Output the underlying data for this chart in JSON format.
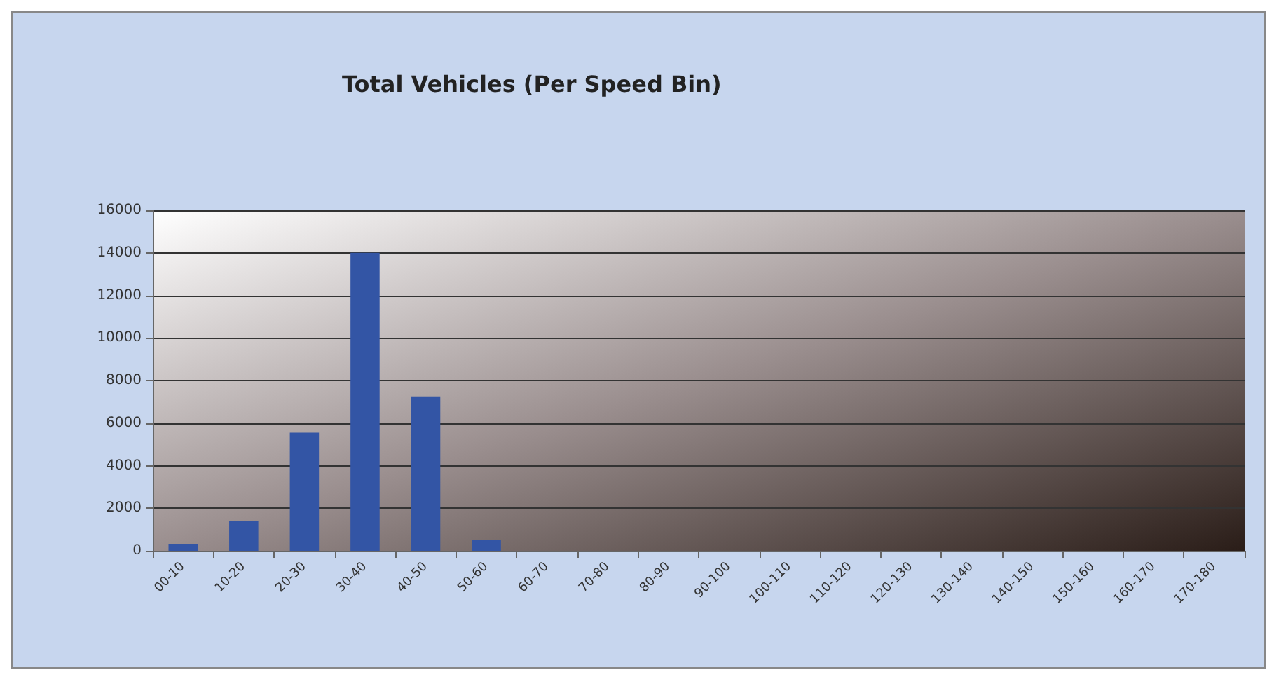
{
  "chart_data": {
    "type": "bar",
    "title": "Total Vehicles (Per Speed Bin)",
    "categories": [
      "00-10",
      "10-20",
      "20-30",
      "30-40",
      "40-50",
      "50-60",
      "60-70",
      "70-80",
      "80-90",
      "90-100",
      "100-110",
      "110-120",
      "120-130",
      "130-140",
      "140-150",
      "150-160",
      "160-170",
      "170-180"
    ],
    "values": [
      330,
      1400,
      5550,
      14000,
      7250,
      500,
      0,
      0,
      0,
      0,
      0,
      0,
      0,
      0,
      0,
      0,
      0,
      0
    ],
    "color": "#3355a5",
    "ylim": [
      0,
      16000
    ],
    "yticks": [
      0,
      2000,
      4000,
      6000,
      8000,
      10000,
      12000,
      14000,
      16000
    ],
    "grid": "y"
  }
}
